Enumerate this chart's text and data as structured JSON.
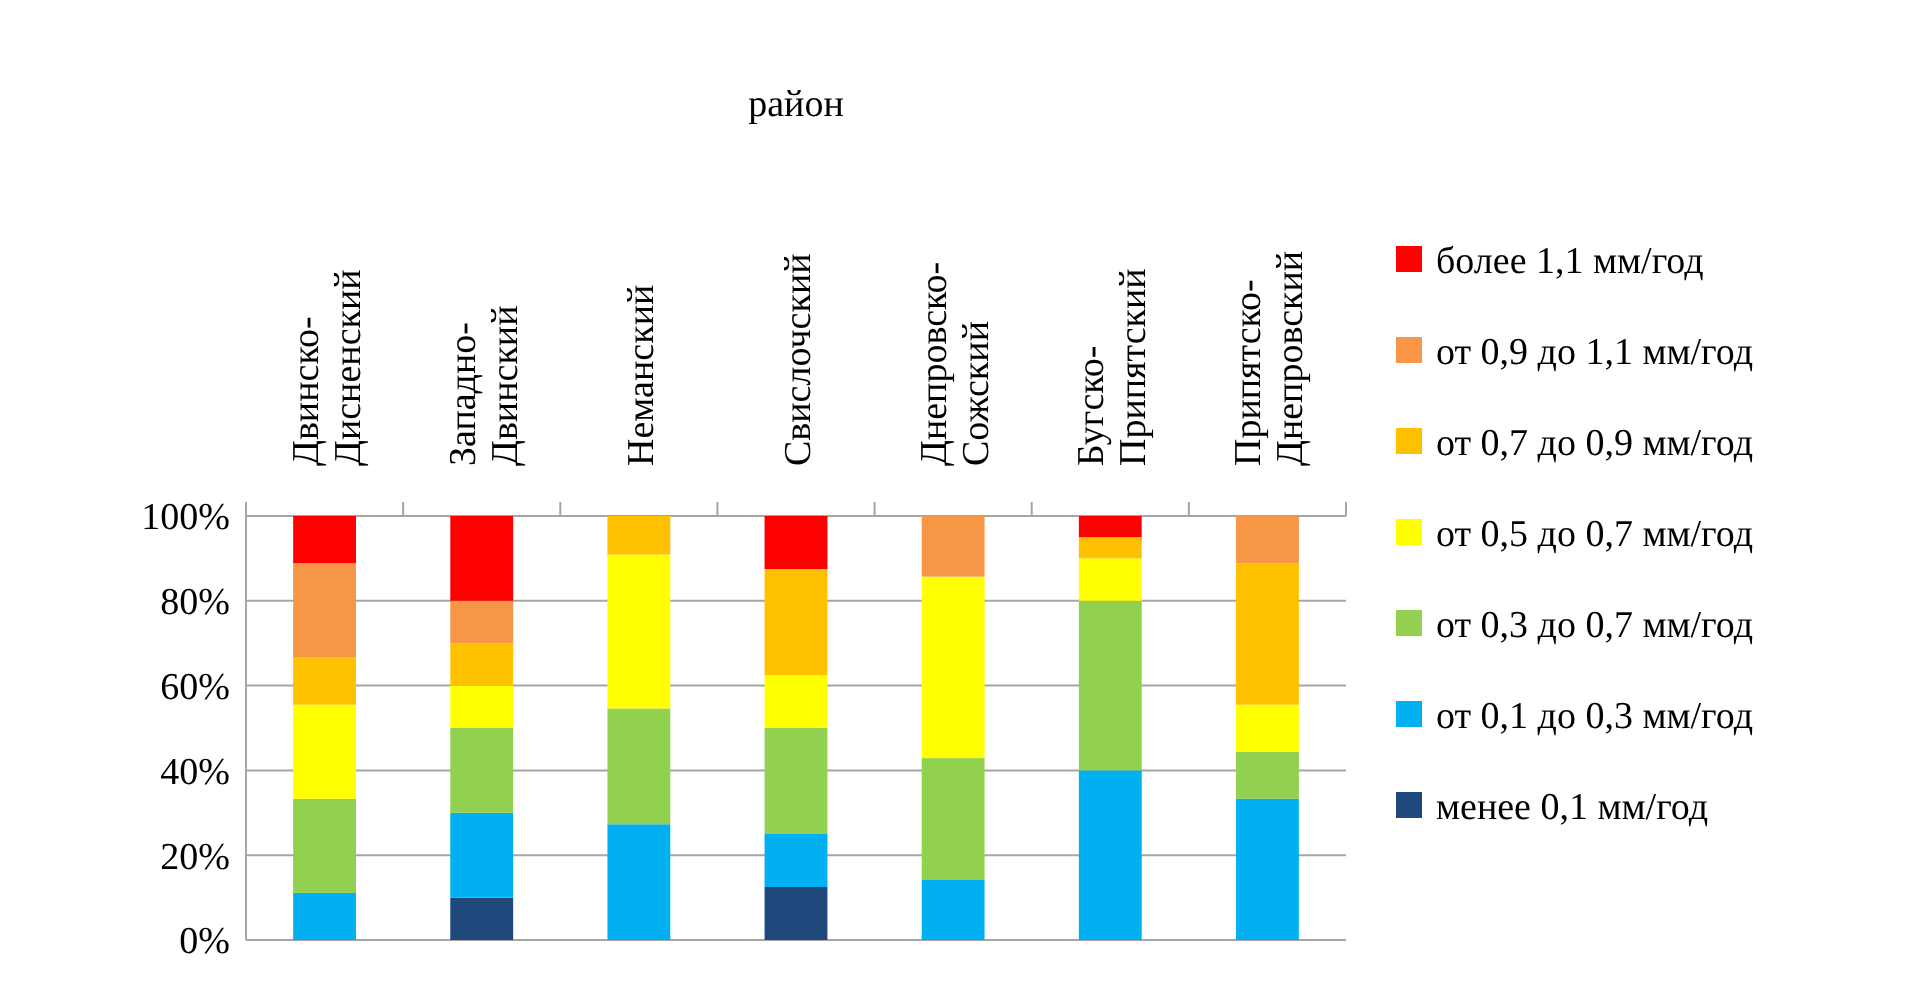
{
  "chart_data": {
    "type": "bar",
    "stacked": true,
    "xlabel": "район",
    "categories": [
      "Двинско-Дисненский",
      "Западно-Двинский",
      "Неманский",
      "Свислочский",
      "Днепровско-Сожский",
      "Бугско-Припятский",
      "Припятско-Днепровский"
    ],
    "series": [
      {
        "name": "менее 0,1 мм/год",
        "color": "#1f497d",
        "values": [
          0,
          10,
          0,
          12.5,
          0,
          0,
          0
        ]
      },
      {
        "name": "от 0,1 до 0,3 мм/год",
        "color": "#00b0f0",
        "values": [
          11.1,
          20,
          27.3,
          12.5,
          14.3,
          40,
          33.3
        ]
      },
      {
        "name": "от 0,3 до 0,7 мм/год",
        "color": "#92d050",
        "values": [
          22.2,
          20,
          27.3,
          25,
          28.6,
          40,
          11.1
        ]
      },
      {
        "name": "от 0,5 до 0,7 мм/год",
        "color": "#ffff00",
        "values": [
          22.2,
          10,
          36.3,
          12.5,
          42.8,
          10,
          11.1
        ]
      },
      {
        "name": "от 0,7 до 0,9 мм/год",
        "color": "#ffc000",
        "values": [
          11.1,
          10,
          9.1,
          25,
          0,
          5,
          33.3
        ]
      },
      {
        "name": "от 0,9 до 1,1 мм/год",
        "color": "#f79646",
        "values": [
          22.3,
          10,
          0,
          0,
          14.3,
          0,
          11.2
        ]
      },
      {
        "name": "более 1,1 мм/год",
        "color": "#ff0000",
        "values": [
          11.1,
          20,
          0,
          12.5,
          0,
          5,
          0
        ]
      }
    ],
    "ylim": [
      0,
      100
    ],
    "yticks": [
      {
        "value": 0,
        "label": "0%"
      },
      {
        "value": 20,
        "label": "20%"
      },
      {
        "value": 40,
        "label": "40%"
      },
      {
        "value": 60,
        "label": "60%"
      },
      {
        "value": 80,
        "label": "80%"
      },
      {
        "value": 100,
        "label": "100%"
      }
    ],
    "grid": "y",
    "legend": "right"
  }
}
